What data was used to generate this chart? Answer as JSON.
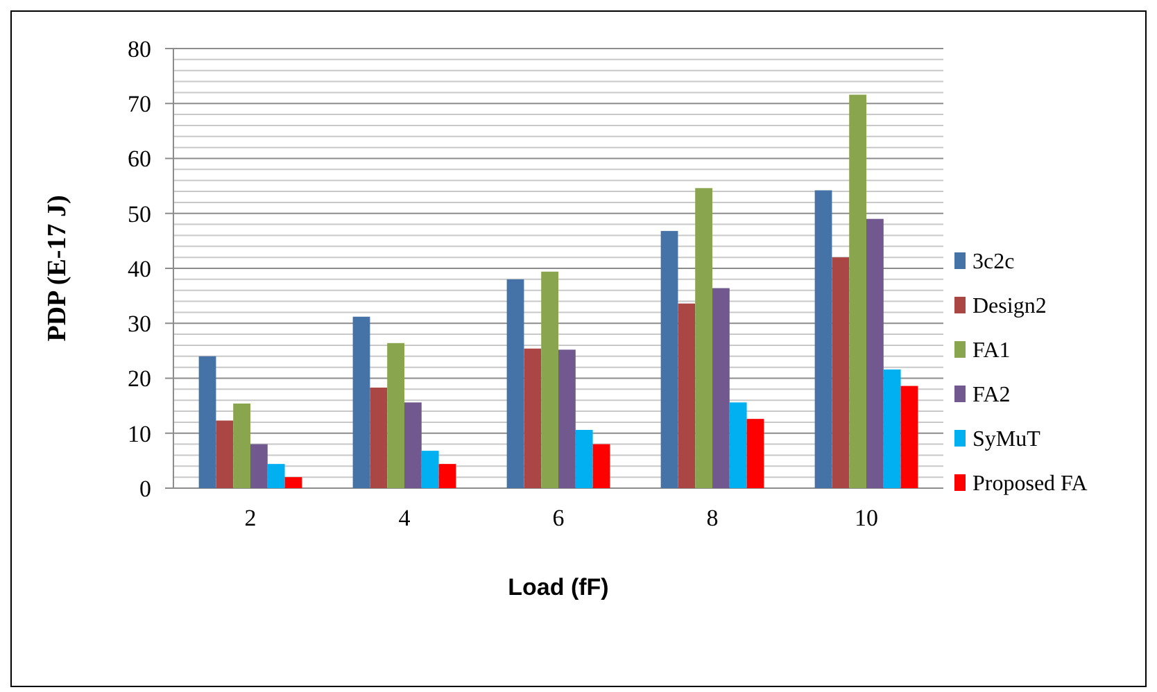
{
  "chart_data": {
    "type": "bar",
    "xlabel": "Load (fF)",
    "ylabel": "PDP (E-17 J)",
    "categories": [
      "2",
      "4",
      "6",
      "8",
      "10"
    ],
    "series": [
      {
        "name": "3c2c",
        "color": "#4572a7",
        "values": [
          24,
          31.2,
          38,
          46.8,
          54.2
        ]
      },
      {
        "name": "Design2",
        "color": "#aa4643",
        "values": [
          12.3,
          18.3,
          25.4,
          33.6,
          42
        ]
      },
      {
        "name": "FA1",
        "color": "#89a54e",
        "values": [
          15.4,
          26.4,
          39.4,
          54.6,
          71.6
        ]
      },
      {
        "name": "FA2",
        "color": "#71588f",
        "values": [
          8,
          15.6,
          25.2,
          36.4,
          49
        ]
      },
      {
        "name": "SyMuT",
        "color": "#00b0f0",
        "values": [
          4.4,
          6.8,
          10.6,
          15.6,
          21.6
        ]
      },
      {
        "name": "Proposed FA",
        "color": "#ff0000",
        "values": [
          2,
          4.4,
          8,
          12.6,
          18.6
        ]
      }
    ],
    "ylim": [
      0,
      80
    ],
    "yticks": [
      0,
      {
        "value": 2,
        "label": null
      },
      {
        "value": 4,
        "label": null
      },
      {
        "value": 6,
        "label": null
      },
      {
        "value": 8,
        "label": null
      },
      10,
      {
        "value": 12,
        "label": null
      },
      {
        "value": 14,
        "label": null
      },
      {
        "value": 16,
        "label": null
      },
      {
        "value": 18,
        "label": null
      },
      20,
      {
        "value": 22,
        "label": null
      },
      {
        "value": 24,
        "label": null
      },
      {
        "value": 26,
        "label": null
      },
      {
        "value": 28,
        "label": null
      },
      30,
      {
        "value": 32,
        "label": null
      },
      {
        "value": 34,
        "label": null
      },
      {
        "value": 36,
        "label": null
      },
      {
        "value": 38,
        "label": null
      },
      40,
      {
        "value": 42,
        "label": null
      },
      {
        "value": 44,
        "label": null
      },
      {
        "value": 46,
        "label": null
      },
      {
        "value": 48,
        "label": null
      },
      50,
      {
        "value": 52,
        "label": null
      },
      {
        "value": 54,
        "label": null
      },
      {
        "value": 56,
        "label": null
      },
      {
        "value": 58,
        "label": null
      },
      60,
      {
        "value": 62,
        "label": null
      },
      {
        "value": 64,
        "label": null
      },
      {
        "value": 66,
        "label": null
      },
      {
        "value": 68,
        "label": null
      },
      70,
      {
        "value": 72,
        "label": null
      },
      {
        "value": 74,
        "label": null
      },
      {
        "value": 76,
        "label": null
      },
      {
        "value": 78,
        "label": null
      },
      80
    ],
    "grid": "y",
    "legend": "right"
  }
}
